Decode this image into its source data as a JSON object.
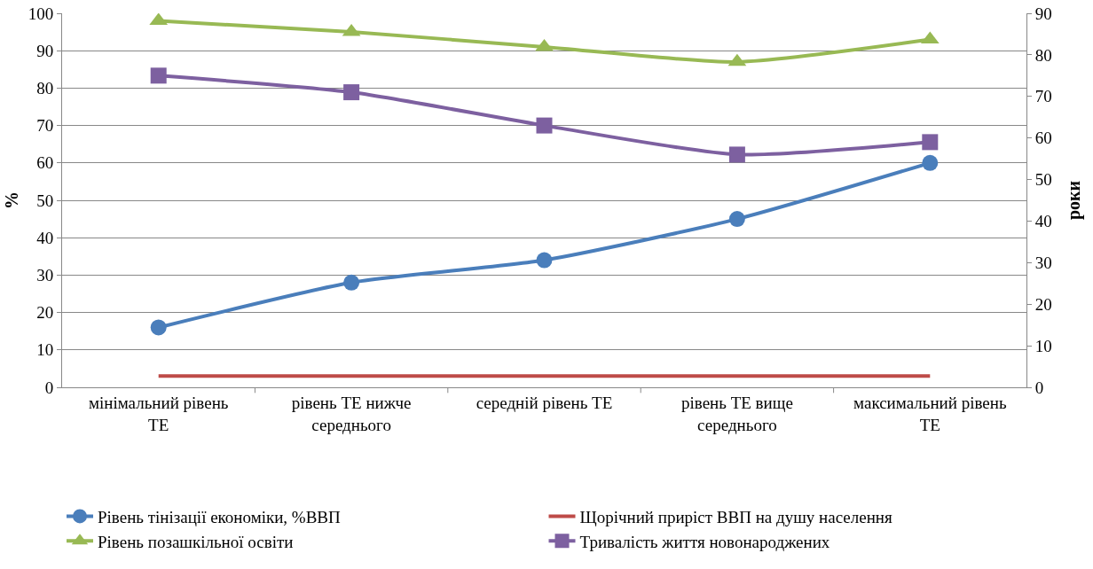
{
  "chart_data": {
    "type": "line",
    "categories": [
      "мінімальний рівень ТЕ",
      "рівень ТЕ нижче середнього",
      "середній рівень ТЕ",
      "рівень ТЕ вище середнього",
      "максимальний рівень ТЕ"
    ],
    "series": [
      {
        "name": "Рівень тінізації економіки, %ВВП",
        "color": "#4a7ebb",
        "values": [
          16,
          28,
          34,
          45,
          60
        ],
        "marker": "circle"
      },
      {
        "name": "Щорічний приріст ВВП на душу населення",
        "color": "#be4b48",
        "values": [
          3,
          3,
          3,
          3,
          3
        ],
        "marker": "none"
      },
      {
        "name": "Рівень позашкільної освіти",
        "color": "#98b954",
        "values": [
          98,
          95,
          91,
          87,
          93
        ],
        "marker": "triangle"
      },
      {
        "name": "Тривалість життя новонароджених",
        "color": "#7d60a0",
        "values": [
          75,
          71,
          63,
          56,
          59
        ],
        "marker": "square",
        "axis": "y2"
      }
    ],
    "ylabel": "%",
    "y2label": "роки",
    "ylim": [
      0,
      100
    ],
    "yticks": [
      0,
      10,
      20,
      30,
      40,
      50,
      60,
      70,
      80,
      90,
      100
    ],
    "y2lim": [
      0,
      90
    ],
    "y2ticks": [
      0,
      10,
      20,
      30,
      40,
      50,
      60,
      70,
      80,
      90
    ],
    "grid": "y",
    "legend": "bottom"
  }
}
